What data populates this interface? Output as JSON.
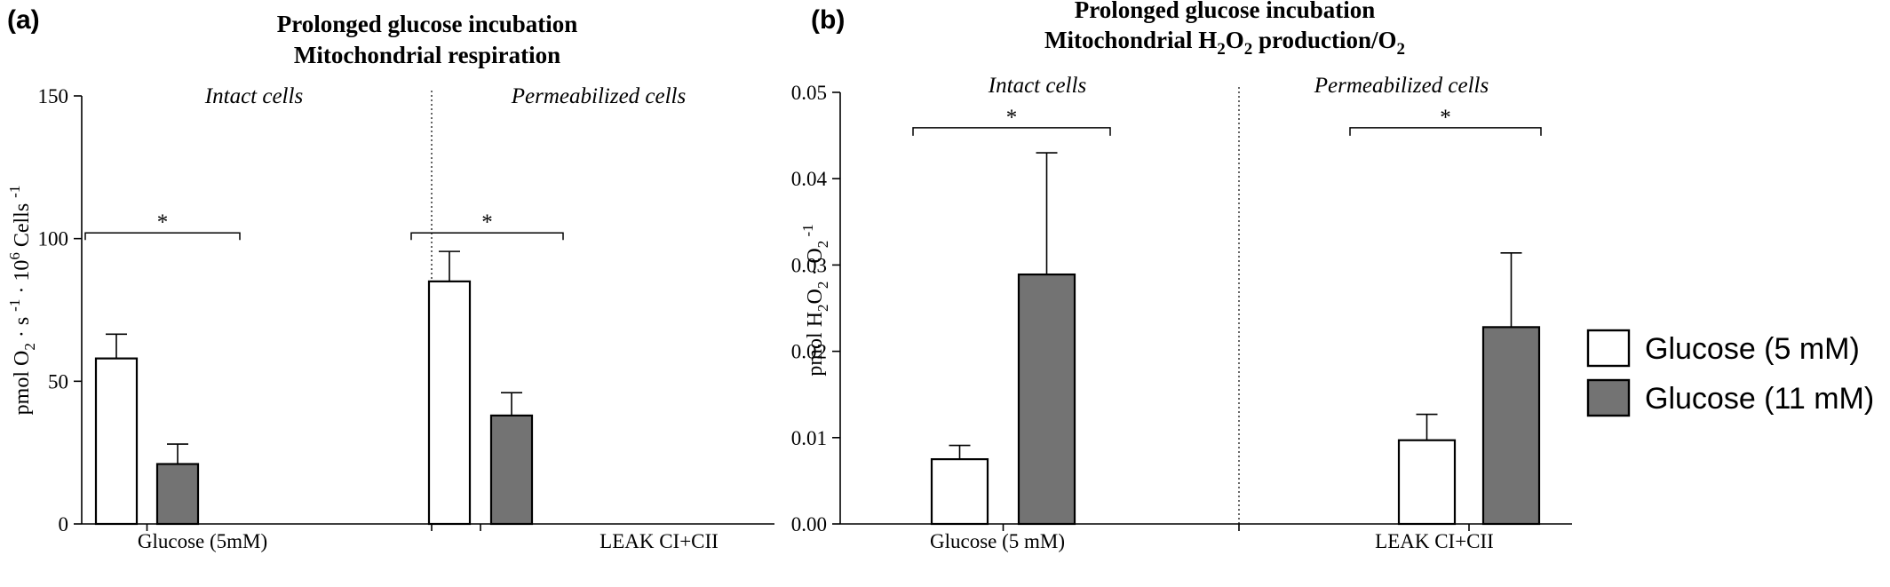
{
  "legend": {
    "items": [
      {
        "label": "Glucose (5 mM)",
        "color": "#ffffff"
      },
      {
        "label": "Glucose (11 mM)",
        "color": "#737373"
      }
    ]
  },
  "chart_data": [
    {
      "panel": "(a)",
      "type": "bar",
      "title": [
        "Prolonged glucose incubation",
        "Mitochondrial respiration"
      ],
      "ylabel": "pmol O2 · s -1 · 10 6 Cells -1",
      "ylim": [
        0,
        150
      ],
      "yticks": [
        0,
        50,
        100,
        150
      ],
      "ytick_labels": [
        "0",
        "50",
        "100",
        "150"
      ],
      "sections": [
        "Intact cells",
        "Permeabilized cells"
      ],
      "categories": [
        "Glucose (5mM)",
        "LEAK CI+CII"
      ],
      "series": [
        {
          "name": "Glucose (5 mM)",
          "color": "#ffffff",
          "values": [
            58,
            85
          ],
          "errors": [
            8.5,
            10.5
          ]
        },
        {
          "name": "Glucose (11 mM)",
          "color": "#737373",
          "values": [
            21,
            38
          ],
          "errors": [
            7,
            8
          ]
        }
      ],
      "significance": [
        {
          "category": 0,
          "label": "*",
          "y": 102
        },
        {
          "category": 1,
          "label": "*",
          "y": 102
        }
      ],
      "grid": false
    },
    {
      "panel": "(b)",
      "type": "bar",
      "title": [
        "Prolonged glucose incubation",
        "Mitochondrial H2O2 production/O2"
      ],
      "ylabel": "pmol H2O2 · O2 -1",
      "ylim": [
        0,
        0.05
      ],
      "yticks": [
        0,
        0.01,
        0.02,
        0.03,
        0.04,
        0.05
      ],
      "ytick_labels": [
        "0.00",
        "0.01",
        "0.02",
        "0.03",
        "0.04",
        "0.05"
      ],
      "sections": [
        "Intact cells",
        "Permeabilized cells"
      ],
      "categories": [
        "Glucose (5 mM)",
        "LEAK CI+CII"
      ],
      "series": [
        {
          "name": "Glucose (5 mM)",
          "color": "#ffffff",
          "values": [
            0.0075,
            0.0097
          ],
          "errors": [
            0.0016,
            0.003
          ]
        },
        {
          "name": "Glucose (11 mM)",
          "color": "#737373",
          "values": [
            0.0289,
            0.0228
          ],
          "errors": [
            0.0141,
            0.0086
          ]
        }
      ],
      "significance": [
        {
          "category": 0,
          "label": "*",
          "y": 0.0459
        },
        {
          "category": 1,
          "label": "*",
          "y": 0.0459
        }
      ],
      "grid": false
    }
  ]
}
